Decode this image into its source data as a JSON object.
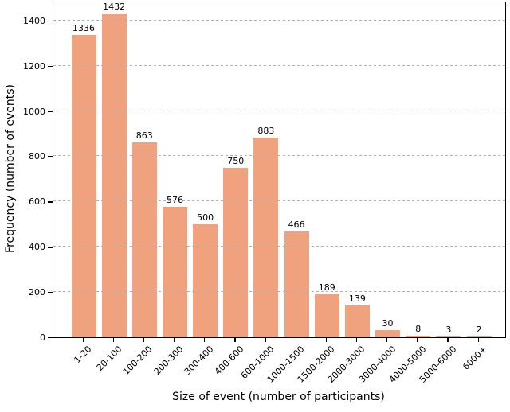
{
  "chart_data": {
    "type": "bar",
    "title": "",
    "xlabel": "Size of event (number of participants)",
    "ylabel": "Frequency (number of events)",
    "categories": [
      "1-20",
      "20-100",
      "100-200",
      "200-300",
      "300-400",
      "400-600",
      "600-1000",
      "1000-1500",
      "1500-2000",
      "2000-3000",
      "3000-4000",
      "4000-5000",
      "5000-6000",
      "6000+"
    ],
    "values": [
      1336,
      1432,
      863,
      576,
      500,
      750,
      883,
      466,
      189,
      139,
      30,
      8,
      3,
      2
    ],
    "bar_value_labels": [
      "1336",
      "1432",
      "863",
      "576",
      "500",
      "750",
      "883",
      "466",
      "189",
      "139",
      "30",
      "8",
      "3",
      "2"
    ],
    "ylim": [
      0,
      1480
    ],
    "yticks": [
      0,
      200,
      400,
      600,
      800,
      1000,
      1200,
      1400
    ],
    "x_tick_rotation_deg": 45,
    "bar_color": "#efa27d",
    "grid": {
      "axis": "y",
      "line_style": "dashed",
      "color": "#b0b0b0",
      "drawn_over_bars": true
    },
    "legend": null
  }
}
